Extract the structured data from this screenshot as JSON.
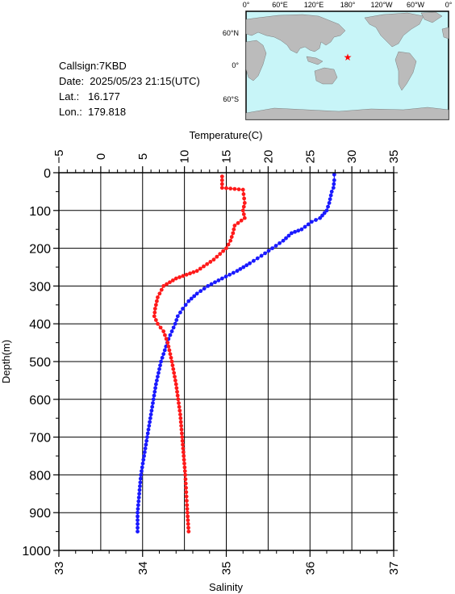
{
  "station": {
    "callsign": "Callsign:7KBD",
    "date": "Date:  2025/05/23 21:15(UTC)",
    "lat": "Lat.:   16.177",
    "lon": "Lon.:  179.818"
  },
  "map": {
    "top_labels": [
      "0°",
      "60°E",
      "120°E",
      "180°",
      "120°W",
      "60°W",
      "0°"
    ],
    "right_labels": [
      "60°N",
      "0°",
      "60°S"
    ],
    "ocean_color": "#c8f5f8",
    "land_color": "#bbbbbb",
    "marker_color": "#ff0000",
    "marker": {
      "lon": 179.818,
      "lat": 16.177
    }
  },
  "chart_data": {
    "type": "line",
    "xlabel_top": "Temperature(C)",
    "xlabel_bottom": "Salinity",
    "ylabel": "Depth(m)",
    "temperature_ticks": [
      "−5",
      "0",
      "5",
      "10",
      "15",
      "20",
      "25",
      "30",
      "35"
    ],
    "salinity_ticks": [
      "33",
      "34",
      "35",
      "36",
      "37"
    ],
    "depth_ticks": [
      "0",
      "100",
      "200",
      "300",
      "400",
      "500",
      "600",
      "700",
      "800",
      "900",
      "1000"
    ],
    "temperature_range": [
      -5,
      35
    ],
    "salinity_range": [
      33,
      37
    ],
    "depth_range": [
      0,
      1000
    ],
    "grid": true,
    "series": [
      {
        "axis": "temperature",
        "color": "#1a1aff",
        "points": [
          [
            27.9,
            5
          ],
          [
            27.9,
            20
          ],
          [
            27.8,
            40
          ],
          [
            27.6,
            50
          ],
          [
            27.3,
            80
          ],
          [
            27.0,
            100
          ],
          [
            26.2,
            120
          ],
          [
            25.2,
            130
          ],
          [
            24.0,
            150
          ],
          [
            22.8,
            160
          ],
          [
            21.8,
            180
          ],
          [
            20.5,
            200
          ],
          [
            19.2,
            220
          ],
          [
            17.8,
            240
          ],
          [
            16.3,
            260
          ],
          [
            14.5,
            280
          ],
          [
            12.8,
            300
          ],
          [
            11.5,
            320
          ],
          [
            10.5,
            340
          ],
          [
            9.8,
            360
          ],
          [
            9.2,
            380
          ],
          [
            8.9,
            400
          ],
          [
            8.5,
            420
          ],
          [
            8.1,
            440
          ],
          [
            7.8,
            460
          ],
          [
            7.5,
            480
          ],
          [
            7.2,
            500
          ],
          [
            6.9,
            530
          ],
          [
            6.6,
            560
          ],
          [
            6.3,
            600
          ],
          [
            6.0,
            640
          ],
          [
            5.7,
            680
          ],
          [
            5.4,
            720
          ],
          [
            5.1,
            760
          ],
          [
            4.8,
            800
          ],
          [
            4.6,
            850
          ],
          [
            4.4,
            900
          ],
          [
            4.4,
            950
          ]
        ]
      },
      {
        "axis": "salinity",
        "color": "#ff1a1a",
        "points": [
          [
            34.95,
            10
          ],
          [
            34.95,
            40
          ],
          [
            35.2,
            45
          ],
          [
            35.22,
            80
          ],
          [
            35.2,
            100
          ],
          [
            35.22,
            120
          ],
          [
            35.1,
            140
          ],
          [
            35.08,
            160
          ],
          [
            35.05,
            180
          ],
          [
            35.0,
            200
          ],
          [
            34.85,
            230
          ],
          [
            34.65,
            260
          ],
          [
            34.4,
            280
          ],
          [
            34.25,
            300
          ],
          [
            34.18,
            330
          ],
          [
            34.15,
            360
          ],
          [
            34.14,
            380
          ],
          [
            34.18,
            400
          ],
          [
            34.25,
            420
          ],
          [
            34.3,
            450
          ],
          [
            34.35,
            500
          ],
          [
            34.4,
            560
          ],
          [
            34.45,
            640
          ],
          [
            34.48,
            720
          ],
          [
            34.51,
            800
          ],
          [
            34.53,
            880
          ],
          [
            34.55,
            950
          ]
        ]
      }
    ]
  }
}
